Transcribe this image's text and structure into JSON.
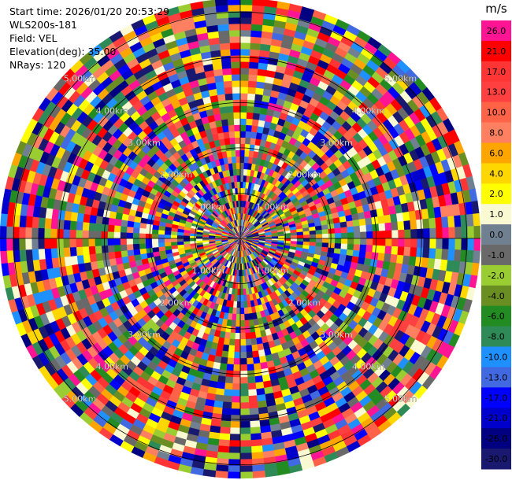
{
  "header": {
    "start_time": "Start time: 2026/01/20 20:53:29",
    "site": "WLS200s-181",
    "field": "Field: VEL",
    "elevation": "Elevation(deg): 35.00",
    "nrays": "NRays: 120"
  },
  "chart_data": {
    "type": "heatmap",
    "projection": "polar-ppi",
    "field": "VEL",
    "elevation_deg": 35.0,
    "n_rays": 120,
    "range_rings_km": [
      1,
      2,
      3,
      4,
      5
    ],
    "range_ring_labels": [
      "1.00km",
      "2.00km",
      "3.00km",
      "4.00km",
      "5.00km"
    ],
    "colorbar": {
      "unit": "m/s",
      "ticks": [
        "26.0",
        "21.0",
        "17.0",
        "13.0",
        "10.0",
        "8.0",
        "6.0",
        "4.0",
        "2.0",
        "1.0",
        "0.0",
        "-1.0",
        "-2.0",
        "-4.0",
        "-6.0",
        "-8.0",
        "-10.0",
        "-13.0",
        "-17.0",
        "-21.0",
        "-26.0",
        "-30.0"
      ],
      "colors": [
        "#ff1493",
        "#ff0000",
        "#ff3535",
        "#ff4040",
        "#ff6347",
        "#ff8060",
        "#ffa500",
        "#ffd700",
        "#ffff00",
        "#fafad2",
        "#708090",
        "#696969",
        "#9acd32",
        "#6b8e23",
        "#228b22",
        "#2e8b57",
        "#1e90ff",
        "#4169e1",
        "#0000ff",
        "#0000cd",
        "#000080",
        "#191970"
      ]
    }
  }
}
